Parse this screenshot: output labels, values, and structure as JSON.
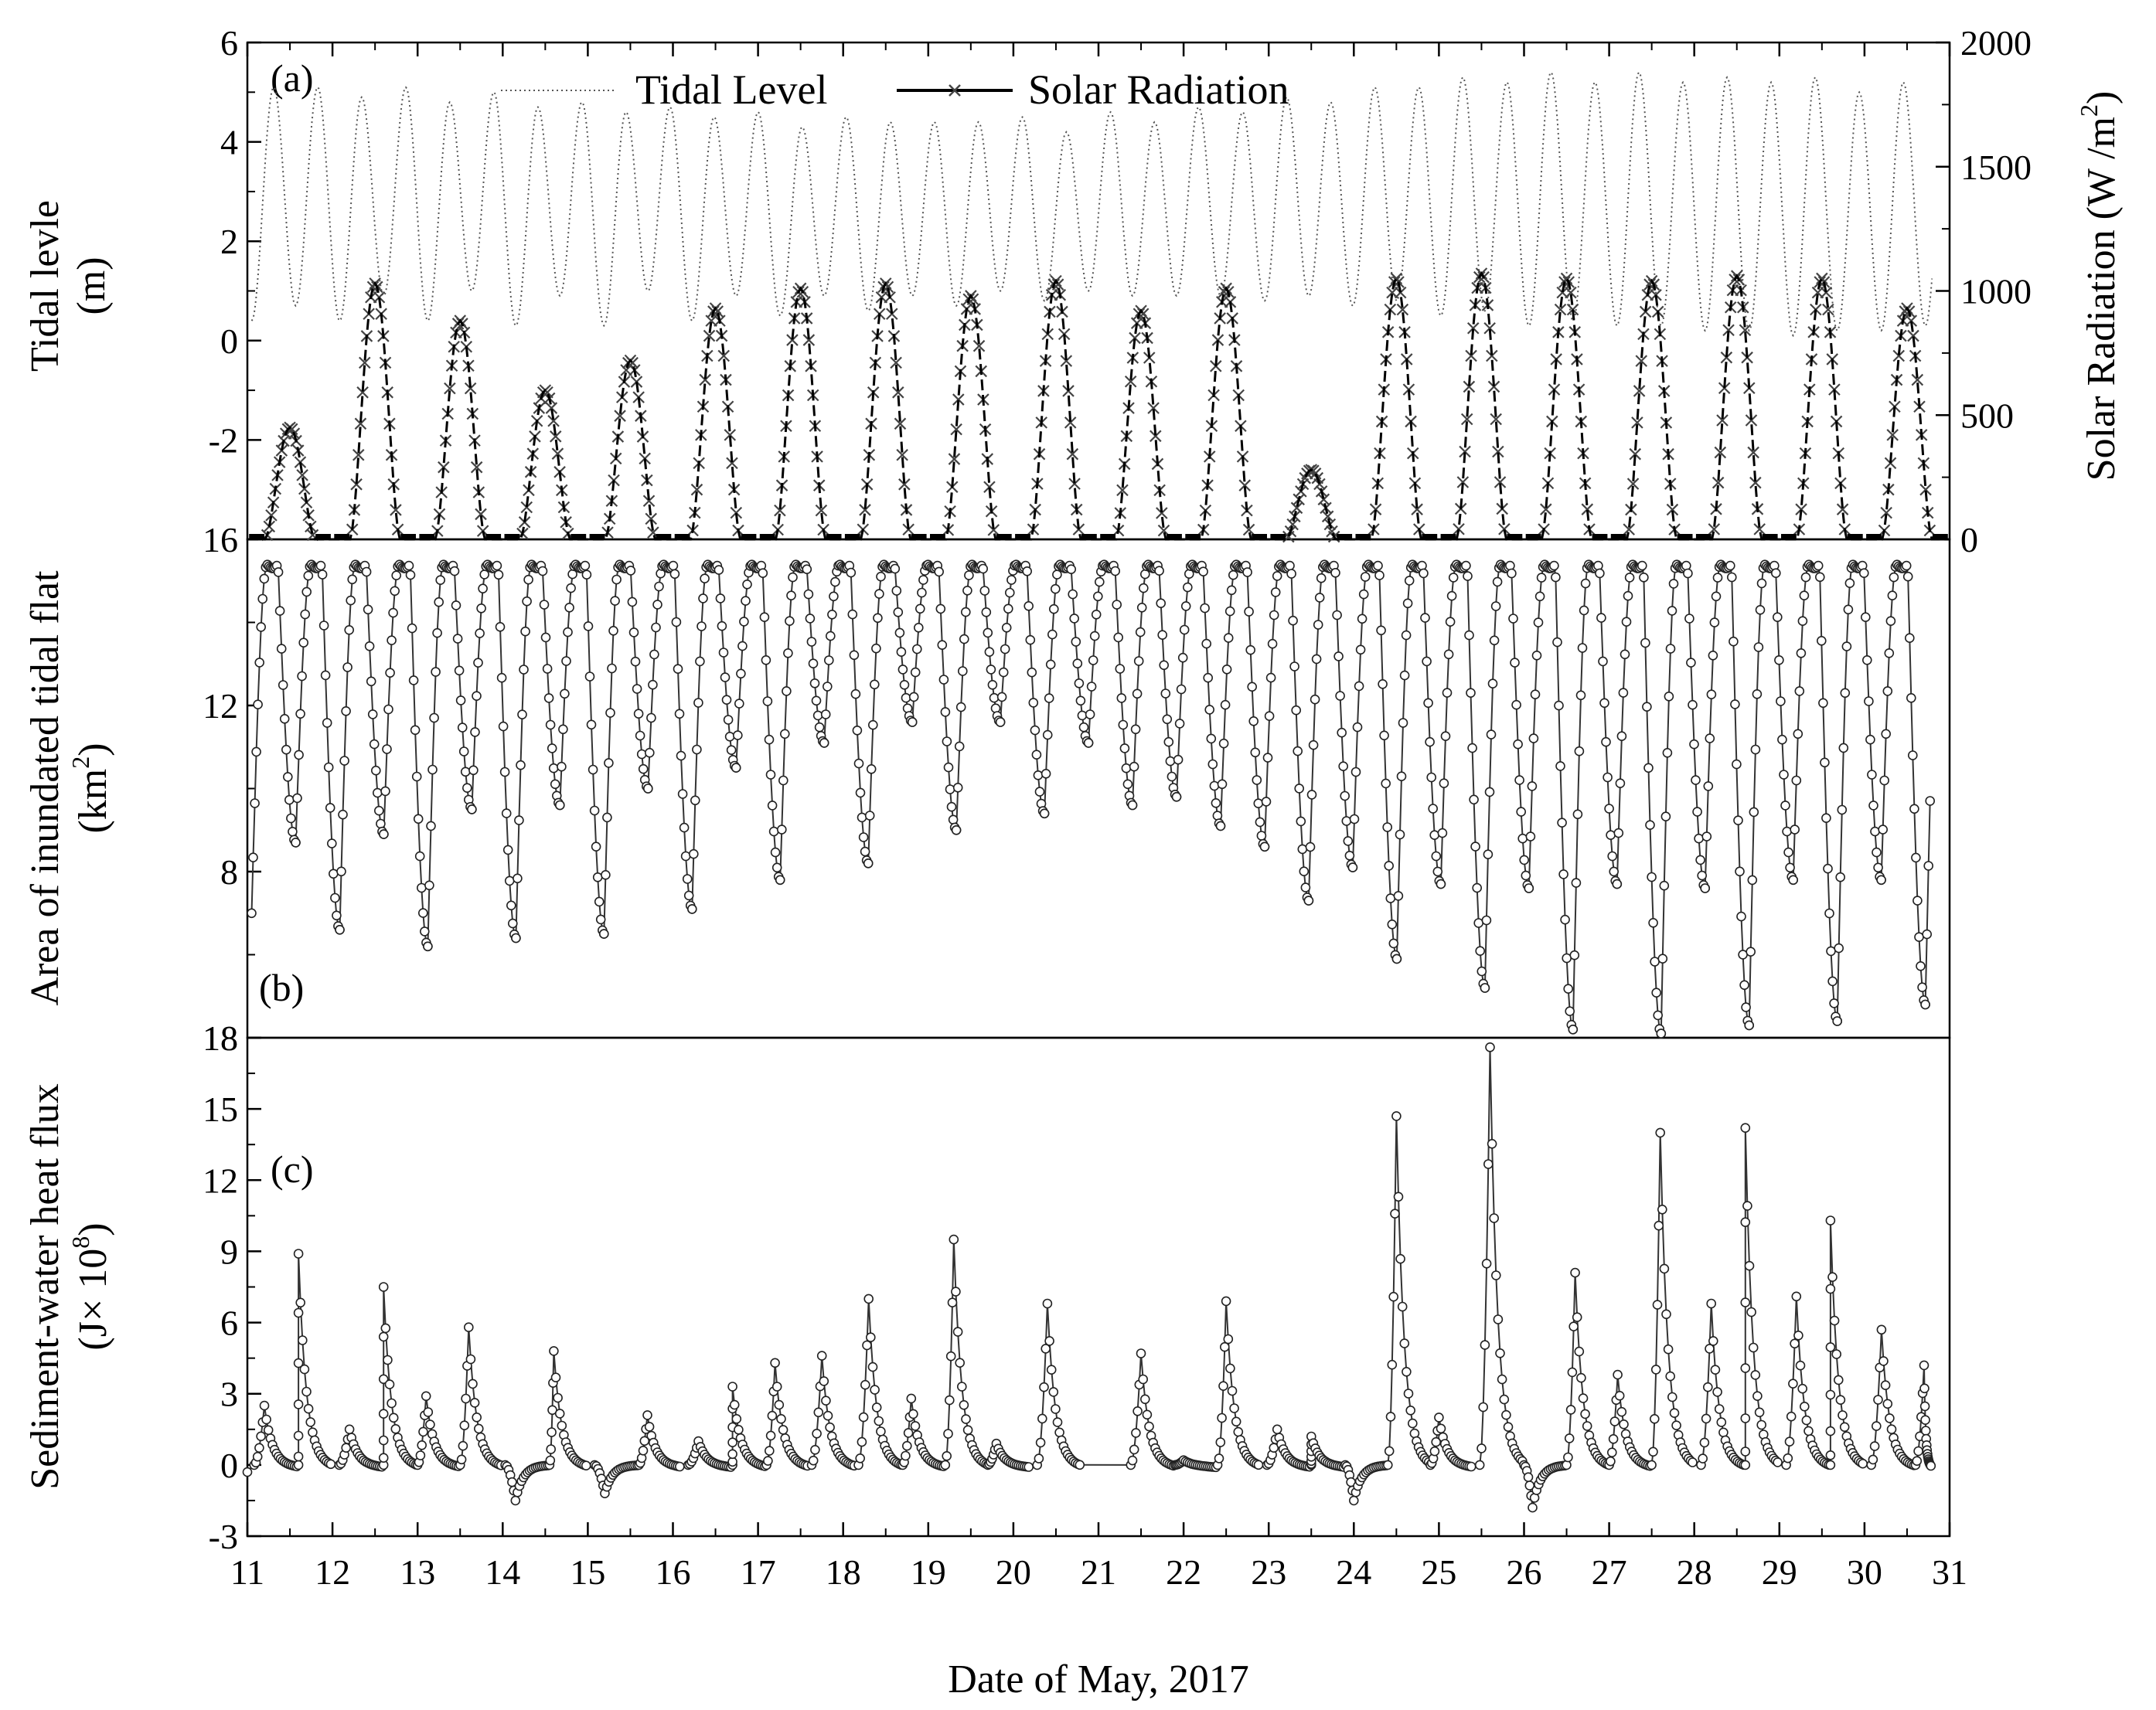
{
  "chart_data": [
    {
      "id": "a",
      "type": "line",
      "panel_label": "(a)",
      "xlabel": "Date of May, 2017",
      "ylabel": "Tidal levle (m)",
      "ylabel_lines": [
        "Tidal levle",
        "(m)"
      ],
      "y2label": "Solar Radiation (W /m 2)",
      "y2label_parts": [
        "Solar Radiation (W /m",
        "2",
        ")"
      ],
      "xlim": [
        11,
        31
      ],
      "ylim": [
        -4,
        6
      ],
      "y2lim": [
        0,
        2000
      ],
      "xticks": [
        "11",
        "12",
        "13",
        "14",
        "15",
        "16",
        "17",
        "18",
        "19",
        "20",
        "21",
        "22",
        "23",
        "24",
        "25",
        "26",
        "27",
        "28",
        "29",
        "30",
        "31"
      ],
      "yticks": [
        "-2",
        "0",
        "2",
        "4",
        "6"
      ],
      "y2ticks": [
        "0",
        "500",
        "1000",
        "1500",
        "2000"
      ],
      "legend": {
        "position": "top-center",
        "entries": [
          "Tidal Level",
          "Solar Radiation"
        ]
      },
      "series": [
        {
          "name": "Tidal Level",
          "style": "dotted",
          "description_values": "semi-diurnal tide, high waters (m) per cycle",
          "high_tides": [
            5.1,
            5.1,
            4.9,
            5.1,
            4.8,
            5.0,
            4.7,
            4.8,
            4.6,
            4.7,
            4.5,
            4.6,
            4.3,
            4.5,
            4.4,
            4.4,
            4.4,
            4.5,
            4.2,
            4.6,
            4.4,
            4.7,
            4.6,
            4.9,
            4.8,
            5.1,
            5.1,
            5.3,
            5.2,
            5.4,
            5.2,
            5.4,
            5.2,
            5.3,
            5.2,
            5.3,
            5.0,
            5.2,
            4.9,
            3.4
          ],
          "low_tides": [
            0.4,
            0.7,
            0.4,
            0.9,
            0.4,
            1.0,
            0.3,
            0.9,
            0.3,
            1.0,
            0.4,
            0.9,
            0.5,
            0.9,
            0.6,
            0.9,
            0.7,
            1.0,
            0.8,
            1.0,
            0.9,
            0.9,
            0.9,
            0.8,
            0.9,
            0.7,
            0.8,
            0.5,
            0.6,
            0.3,
            0.4,
            0.3,
            0.3,
            0.2,
            0.2,
            0.1,
            0.2,
            0.2,
            0.3,
            0.3
          ],
          "phase_start_day": 11.05
        },
        {
          "name": "Solar Radiation",
          "style": "solid-with-crosses",
          "axis": "right",
          "daily_peaks_W_m2": [
            450,
            1030,
            880,
            600,
            720,
            930,
            1010,
            1030,
            980,
            1040,
            920,
            1010,
            280,
            1050,
            1070,
            1050,
            1040,
            1060,
            1050,
            930
          ]
        }
      ]
    },
    {
      "id": "b",
      "type": "line",
      "panel_label": "(b)",
      "ylabel": "Area of inundated tidal flat (km2)",
      "ylabel_lines": [
        "Area of inundated tidal flat",
        "(km",
        "2",
        ")"
      ],
      "ylim": [
        4,
        16
      ],
      "yticks": [
        "4",
        "8",
        "12",
        "16"
      ],
      "ytick_display": [
        "18",
        "8",
        "12",
        "16"
      ],
      "series": [
        {
          "name": "",
          "style": "line-with-open-circles",
          "max_area_km2": 15.4,
          "low_water_area_km2": [
            7.0,
            8.7,
            6.6,
            8.9,
            6.2,
            9.5,
            6.4,
            9.6,
            6.5,
            10.0,
            7.1,
            10.5,
            7.8,
            11.1,
            8.2,
            11.6,
            9.0,
            11.6,
            9.4,
            11.1,
            9.6,
            9.8,
            9.1,
            8.6,
            7.3,
            8.1,
            5.9,
            7.7,
            5.2,
            7.6,
            4.2,
            7.7,
            4.1,
            7.6,
            4.3,
            7.8,
            4.4,
            7.8,
            4.8,
            9.1
          ]
        }
      ]
    },
    {
      "id": "c",
      "type": "line",
      "panel_label": "(c)",
      "ylabel": "Sediment-water heat flux (J×10^8)",
      "ylabel_lines": [
        "Sediment-water heat flux",
        "(J× 10",
        "8",
        ")"
      ],
      "ylim": [
        -3,
        18
      ],
      "yticks": [
        "-3",
        "0",
        "3",
        "6",
        "9",
        "12",
        "15",
        "18"
      ],
      "series": [
        {
          "name": "",
          "style": "line-with-open-circles",
          "peaks": [
            [
              11.2,
              2.5
            ],
            [
              11.6,
              8.9
            ],
            [
              12.2,
              1.5
            ],
            [
              12.6,
              7.5
            ],
            [
              13.1,
              2.9
            ],
            [
              13.6,
              5.8
            ],
            [
              14.15,
              -1.5
            ],
            [
              14.6,
              4.8
            ],
            [
              15.2,
              -1.2
            ],
            [
              15.7,
              2.1
            ],
            [
              16.3,
              1.0
            ],
            [
              16.7,
              3.3
            ],
            [
              17.2,
              4.3
            ],
            [
              17.75,
              4.6
            ],
            [
              18.3,
              7.0
            ],
            [
              18.8,
              2.8
            ],
            [
              19.3,
              9.5
            ],
            [
              19.8,
              0.9
            ],
            [
              20.4,
              6.8
            ],
            [
              21.5,
              4.7
            ],
            [
              22.0,
              0.2
            ],
            [
              22.5,
              6.9
            ],
            [
              23.1,
              1.5
            ],
            [
              23.5,
              1.2
            ],
            [
              24.0,
              -1.5
            ],
            [
              24.5,
              14.7
            ],
            [
              25.0,
              2.0
            ],
            [
              25.6,
              17.6
            ],
            [
              26.1,
              -1.8
            ],
            [
              26.6,
              8.1
            ],
            [
              27.1,
              3.8
            ],
            [
              27.6,
              14.0
            ],
            [
              28.2,
              6.8
            ],
            [
              28.6,
              14.2
            ],
            [
              29.2,
              7.1
            ],
            [
              29.6,
              10.3
            ],
            [
              30.2,
              5.7
            ],
            [
              30.7,
              4.2
            ]
          ]
        }
      ]
    }
  ]
}
